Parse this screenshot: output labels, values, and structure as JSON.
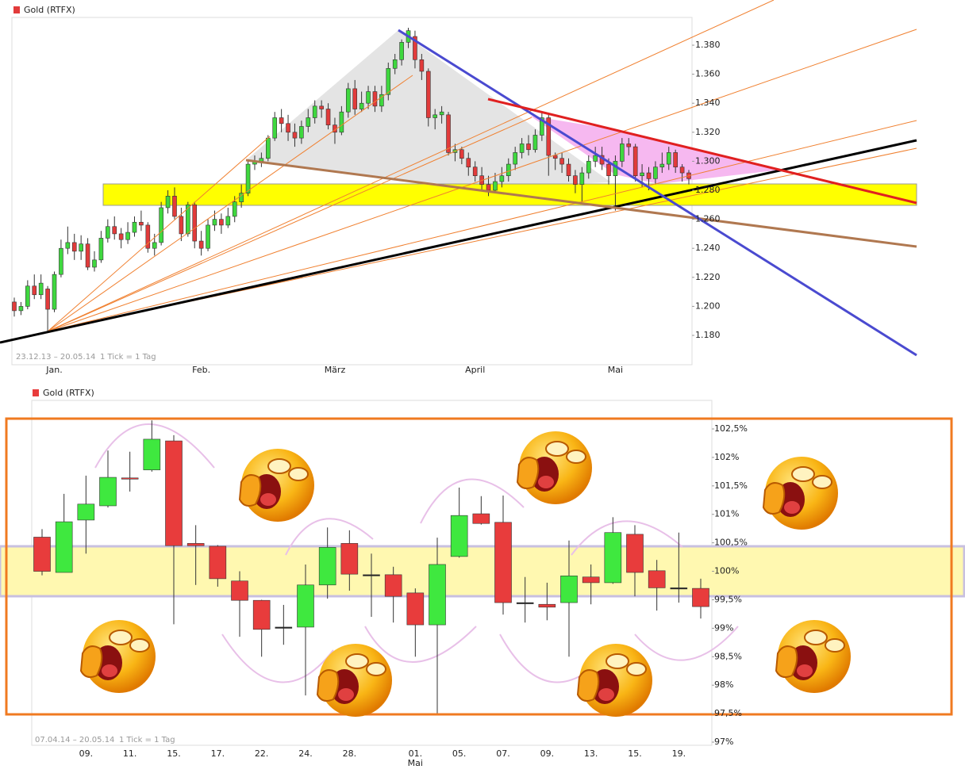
{
  "chart_data": [
    {
      "type": "candlestick",
      "legend": "Gold (RTFX)",
      "caption": "23.12.13 – 20.05.14",
      "tick_note": "1 Tick = 1 Tag",
      "up_color": "#3fd83f",
      "down_color": "#e23b3b",
      "ylim": [
        1.16,
        1.4
      ],
      "yticks": [
        {
          "value": 1.38,
          "label": "1.380"
        },
        {
          "value": 1.36,
          "label": "1.360"
        },
        {
          "value": 1.34,
          "label": "1.340"
        },
        {
          "value": 1.32,
          "label": "1.320"
        },
        {
          "value": 1.3,
          "label": "1.300"
        },
        {
          "value": 1.28,
          "label": "1.280"
        },
        {
          "value": 1.26,
          "label": "1.260"
        },
        {
          "value": 1.24,
          "label": "1.240"
        },
        {
          "value": 1.22,
          "label": "1.220"
        },
        {
          "value": 1.2,
          "label": "1.200"
        },
        {
          "value": 1.18,
          "label": "1.180"
        }
      ],
      "xtick_labels": [
        {
          "index": 6,
          "label": "Jan."
        },
        {
          "index": 28,
          "label": "Feb."
        },
        {
          "index": 48,
          "label": "März"
        },
        {
          "index": 69,
          "label": "April"
        },
        {
          "index": 90,
          "label": "Mai"
        }
      ],
      "ohlc": [
        [
          1.203,
          1.206,
          1.193,
          1.197
        ],
        [
          1.197,
          1.203,
          1.194,
          1.2
        ],
        [
          1.2,
          1.218,
          1.198,
          1.214
        ],
        [
          1.214,
          1.222,
          1.205,
          1.208
        ],
        [
          1.208,
          1.222,
          1.205,
          1.216
        ],
        [
          1.212,
          1.214,
          1.183,
          1.198
        ],
        [
          1.198,
          1.224,
          1.196,
          1.222
        ],
        [
          1.222,
          1.246,
          1.22,
          1.24
        ],
        [
          1.24,
          1.255,
          1.236,
          1.244
        ],
        [
          1.244,
          1.25,
          1.232,
          1.238
        ],
        [
          1.238,
          1.249,
          1.232,
          1.243
        ],
        [
          1.243,
          1.247,
          1.225,
          1.227
        ],
        [
          1.227,
          1.238,
          1.224,
          1.232
        ],
        [
          1.232,
          1.252,
          1.23,
          1.247
        ],
        [
          1.247,
          1.26,
          1.244,
          1.255
        ],
        [
          1.255,
          1.262,
          1.246,
          1.25
        ],
        [
          1.25,
          1.254,
          1.24,
          1.246
        ],
        [
          1.246,
          1.258,
          1.243,
          1.251
        ],
        [
          1.251,
          1.262,
          1.248,
          1.258
        ],
        [
          1.258,
          1.266,
          1.252,
          1.256
        ],
        [
          1.256,
          1.258,
          1.237,
          1.24
        ],
        [
          1.24,
          1.25,
          1.235,
          1.244
        ],
        [
          1.244,
          1.272,
          1.242,
          1.268
        ],
        [
          1.268,
          1.28,
          1.264,
          1.276
        ],
        [
          1.276,
          1.282,
          1.26,
          1.262
        ],
        [
          1.262,
          1.268,
          1.245,
          1.25
        ],
        [
          1.25,
          1.272,
          1.248,
          1.27
        ],
        [
          1.27,
          1.272,
          1.24,
          1.245
        ],
        [
          1.245,
          1.252,
          1.235,
          1.24
        ],
        [
          1.24,
          1.26,
          1.238,
          1.256
        ],
        [
          1.256,
          1.266,
          1.252,
          1.26
        ],
        [
          1.26,
          1.264,
          1.25,
          1.256
        ],
        [
          1.256,
          1.268,
          1.254,
          1.262
        ],
        [
          1.262,
          1.276,
          1.258,
          1.272
        ],
        [
          1.272,
          1.284,
          1.268,
          1.278
        ],
        [
          1.278,
          1.3,
          1.276,
          1.298
        ],
        [
          1.298,
          1.304,
          1.294,
          1.3
        ],
        [
          1.3,
          1.306,
          1.296,
          1.302
        ],
        [
          1.302,
          1.318,
          1.3,
          1.316
        ],
        [
          1.316,
          1.334,
          1.314,
          1.33
        ],
        [
          1.33,
          1.336,
          1.32,
          1.326
        ],
        [
          1.326,
          1.332,
          1.314,
          1.32
        ],
        [
          1.32,
          1.326,
          1.31,
          1.316
        ],
        [
          1.316,
          1.328,
          1.312,
          1.324
        ],
        [
          1.324,
          1.336,
          1.32,
          1.33
        ],
        [
          1.33,
          1.342,
          1.326,
          1.338
        ],
        [
          1.338,
          1.342,
          1.33,
          1.336
        ],
        [
          1.336,
          1.34,
          1.322,
          1.325
        ],
        [
          1.325,
          1.33,
          1.312,
          1.32
        ],
        [
          1.32,
          1.338,
          1.318,
          1.334
        ],
        [
          1.334,
          1.354,
          1.33,
          1.35
        ],
        [
          1.35,
          1.356,
          1.332,
          1.336
        ],
        [
          1.336,
          1.348,
          1.334,
          1.34
        ],
        [
          1.34,
          1.352,
          1.336,
          1.348
        ],
        [
          1.348,
          1.352,
          1.334,
          1.338
        ],
        [
          1.338,
          1.352,
          1.334,
          1.346
        ],
        [
          1.346,
          1.368,
          1.342,
          1.364
        ],
        [
          1.364,
          1.374,
          1.36,
          1.37
        ],
        [
          1.37,
          1.384,
          1.366,
          1.382
        ],
        [
          1.382,
          1.392,
          1.378,
          1.39
        ],
        [
          1.386,
          1.39,
          1.364,
          1.37
        ],
        [
          1.37,
          1.374,
          1.356,
          1.362
        ],
        [
          1.362,
          1.364,
          1.324,
          1.33
        ],
        [
          1.33,
          1.336,
          1.322,
          1.332
        ],
        [
          1.332,
          1.338,
          1.326,
          1.334
        ],
        [
          1.332,
          1.334,
          1.304,
          1.306
        ],
        [
          1.306,
          1.312,
          1.3,
          1.308
        ],
        [
          1.308,
          1.31,
          1.298,
          1.302
        ],
        [
          1.302,
          1.306,
          1.29,
          1.296
        ],
        [
          1.296,
          1.3,
          1.286,
          1.29
        ],
        [
          1.29,
          1.296,
          1.28,
          1.284
        ],
        [
          1.284,
          1.29,
          1.276,
          1.28
        ],
        [
          1.28,
          1.292,
          1.278,
          1.286
        ],
        [
          1.286,
          1.296,
          1.282,
          1.29
        ],
        [
          1.29,
          1.302,
          1.286,
          1.298
        ],
        [
          1.298,
          1.31,
          1.294,
          1.306
        ],
        [
          1.306,
          1.316,
          1.302,
          1.312
        ],
        [
          1.312,
          1.318,
          1.304,
          1.308
        ],
        [
          1.308,
          1.322,
          1.306,
          1.318
        ],
        [
          1.318,
          1.334,
          1.314,
          1.33
        ],
        [
          1.33,
          1.332,
          1.29,
          1.304
        ],
        [
          1.304,
          1.306,
          1.294,
          1.302
        ],
        [
          1.302,
          1.306,
          1.292,
          1.298
        ],
        [
          1.298,
          1.302,
          1.286,
          1.29
        ],
        [
          1.29,
          1.294,
          1.278,
          1.284
        ],
        [
          1.284,
          1.296,
          1.272,
          1.292
        ],
        [
          1.292,
          1.304,
          1.288,
          1.3
        ],
        [
          1.3,
          1.31,
          1.296,
          1.304
        ],
        [
          1.304,
          1.31,
          1.294,
          1.298
        ],
        [
          1.298,
          1.302,
          1.284,
          1.29
        ],
        [
          1.29,
          1.304,
          1.266,
          1.3
        ],
        [
          1.3,
          1.316,
          1.296,
          1.312
        ],
        [
          1.312,
          1.316,
          1.304,
          1.31
        ],
        [
          1.31,
          1.312,
          1.286,
          1.29
        ],
        [
          1.29,
          1.298,
          1.282,
          1.292
        ],
        [
          1.292,
          1.296,
          1.28,
          1.288
        ],
        [
          1.288,
          1.3,
          1.284,
          1.296
        ],
        [
          1.296,
          1.306,
          1.292,
          1.298
        ],
        [
          1.298,
          1.31,
          1.294,
          1.306
        ],
        [
          1.306,
          1.308,
          1.292,
          1.296
        ],
        [
          1.296,
          1.298,
          1.286,
          1.292
        ],
        [
          1.292,
          1.294,
          1.284,
          1.288
        ]
      ]
    },
    {
      "type": "candlestick",
      "legend": "Gold (RTFX)",
      "caption": "07.04.14 – 20.05.14",
      "tick_note": "1 Tick = 1 Tag",
      "up_color": "#3fe83f",
      "down_color": "#e83c3c",
      "ylim": [
        96.9,
        103.0
      ],
      "yticks": [
        {
          "value": 102.5,
          "label": "102,5%"
        },
        {
          "value": 102,
          "label": "102%"
        },
        {
          "value": 101.5,
          "label": "101,5%"
        },
        {
          "value": 101,
          "label": "101%"
        },
        {
          "value": 100.5,
          "label": "100,5%"
        },
        {
          "value": 100,
          "label": "100%"
        },
        {
          "value": 99.5,
          "label": "99,5%"
        },
        {
          "value": 99,
          "label": "99%"
        },
        {
          "value": 98.5,
          "label": "98,5%"
        },
        {
          "value": 98,
          "label": "98%"
        },
        {
          "value": 97.5,
          "label": "97,5%"
        },
        {
          "value": 97,
          "label": "97%"
        }
      ],
      "xtick_labels": [
        {
          "index": 2,
          "label": "09."
        },
        {
          "index": 4,
          "label": "11."
        },
        {
          "index": 6,
          "label": "15."
        },
        {
          "index": 8,
          "label": "17."
        },
        {
          "index": 10,
          "label": "22."
        },
        {
          "index": 12,
          "label": "24."
        },
        {
          "index": 14,
          "label": "28."
        },
        {
          "index": 17,
          "label": "01.",
          "sublabel": "Mai"
        },
        {
          "index": 19,
          "label": "05."
        },
        {
          "index": 21,
          "label": "07."
        },
        {
          "index": 23,
          "label": "09."
        },
        {
          "index": 25,
          "label": "13."
        },
        {
          "index": 27,
          "label": "15."
        },
        {
          "index": 29,
          "label": "19."
        }
      ],
      "ohlc": [
        [
          100.6,
          100.74,
          99.93,
          100.0
        ],
        [
          99.98,
          101.36,
          99.98,
          100.87
        ],
        [
          100.9,
          101.68,
          100.31,
          101.18
        ],
        [
          101.15,
          102.12,
          101.12,
          101.65
        ],
        [
          101.64,
          102.1,
          101.4,
          101.62
        ],
        [
          101.78,
          102.65,
          101.75,
          102.32
        ],
        [
          102.29,
          102.39,
          99.07,
          100.45
        ],
        [
          100.49,
          100.81,
          99.76,
          100.45
        ],
        [
          100.44,
          100.46,
          99.73,
          99.87
        ],
        [
          99.83,
          100.0,
          98.85,
          99.49
        ],
        [
          99.49,
          99.5,
          98.5,
          98.98
        ],
        [
          99.02,
          99.41,
          98.71,
          99.02
        ],
        [
          99.02,
          100.12,
          97.82,
          99.76
        ],
        [
          99.76,
          100.77,
          99.52,
          100.42
        ],
        [
          100.49,
          100.72,
          99.66,
          99.95
        ],
        [
          99.94,
          100.31,
          99.2,
          99.94
        ],
        [
          99.94,
          100.08,
          99.1,
          99.56
        ],
        [
          99.62,
          99.7,
          98.5,
          99.06
        ],
        [
          99.06,
          100.59,
          97.5,
          100.12
        ],
        [
          100.26,
          101.47,
          100.24,
          100.98
        ],
        [
          101.01,
          101.32,
          100.82,
          100.84
        ],
        [
          100.86,
          101.33,
          99.24,
          99.45
        ],
        [
          99.45,
          99.9,
          99.1,
          99.45
        ],
        [
          99.42,
          99.8,
          99.14,
          99.37
        ],
        [
          99.45,
          100.54,
          98.5,
          99.92
        ],
        [
          99.9,
          100.12,
          99.42,
          99.8
        ],
        [
          99.8,
          100.95,
          99.78,
          100.68
        ],
        [
          100.65,
          100.81,
          99.56,
          99.98
        ],
        [
          100.01,
          100.2,
          99.31,
          99.71
        ],
        [
          99.71,
          100.68,
          99.45,
          99.71
        ],
        [
          99.7,
          99.87,
          99.17,
          99.38
        ]
      ]
    }
  ]
}
